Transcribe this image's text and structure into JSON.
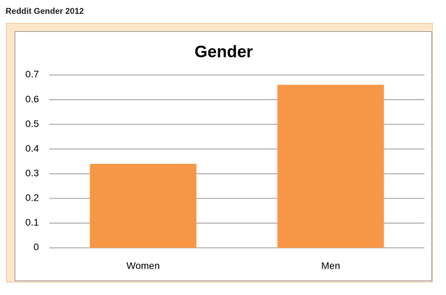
{
  "header": "Reddit Gender 2012",
  "chart_data": {
    "type": "bar",
    "title": "Gender",
    "categories": [
      "Women",
      "Men"
    ],
    "values": [
      0.34,
      0.66
    ],
    "color": "#f79646",
    "ylim": [
      0,
      0.7
    ],
    "yticks": [
      0,
      0.1,
      0.2,
      0.3,
      0.4,
      0.5,
      0.6,
      0.7
    ],
    "grid": true
  }
}
